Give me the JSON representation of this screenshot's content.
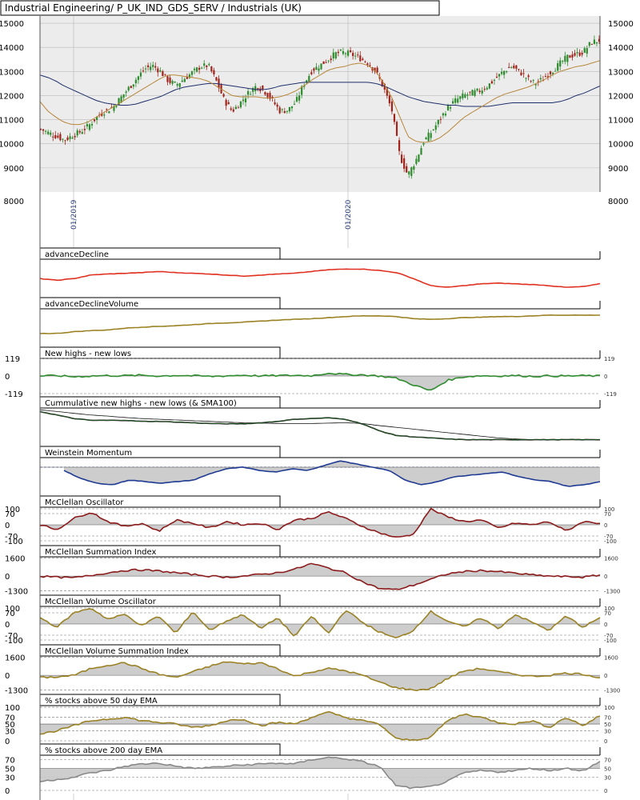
{
  "title": "Industrial Engineering/ P_UK_IND_GDS_SERV / Industrials (UK)",
  "colors": {
    "background": "#ececec",
    "grid": "#bdbdbd",
    "up_candle": "#2e8b2e",
    "down_candle": "#a0241c",
    "ma_short": "#b8863a",
    "ma_long": "#1f2f6b",
    "ad_line": "#e03020",
    "gold": "#9a8224",
    "green": "#2e8b2e",
    "black": "#222222",
    "blue": "#1f3a93",
    "darkred": "#8b1a1a",
    "gray": "#888888",
    "fill": "#c8c8c8"
  },
  "chart_data": [
    {
      "type": "candlestick",
      "title": "Industrial Engineering/ P_UK_IND_GDS_SERV / Industrials (UK)",
      "y_ticks": [
        8000,
        9000,
        10000,
        11000,
        12000,
        13000,
        14000,
        15000
      ],
      "ylim": [
        8000,
        15300
      ],
      "x_labels": [
        "01/2019",
        "01/2020"
      ],
      "x_label_positions": [
        0.06,
        0.55
      ],
      "series": [
        {
          "name": "",
          "style": "candles",
          "values_close": [
            10600,
            10450,
            10300,
            10150,
            10350,
            10500,
            10750,
            11100,
            11350,
            11500,
            11900,
            12300,
            12700,
            13100,
            13250,
            13000,
            12600,
            12450,
            12700,
            12950,
            13200,
            13250,
            12600,
            11800,
            11350,
            11700,
            12100,
            12400,
            12200,
            11800,
            11350,
            11400,
            11750,
            12500,
            13050,
            13250,
            13500,
            13750,
            13800,
            13700,
            13550,
            13350,
            13000,
            12300,
            11400,
            9500,
            8700,
            9300,
            10100,
            10500,
            11000,
            11500,
            11800,
            12000,
            12100,
            12200,
            12400,
            12700,
            13000,
            13200,
            13000,
            12700,
            12500,
            12700,
            13000,
            13300,
            13600,
            13700,
            13800,
            14200,
            14300
          ]
        },
        {
          "name": "",
          "style": "ma_short",
          "values": [
            11750,
            11350,
            11100,
            10900,
            10800,
            10800,
            10900,
            11100,
            11300,
            11500,
            11700,
            11900,
            12100,
            12300,
            12500,
            12700,
            12850,
            12850,
            12800,
            12750,
            12700,
            12600,
            12400,
            12200,
            12000,
            11950,
            11950,
            11950,
            11900,
            11900,
            11950,
            12050,
            12200,
            12400,
            12650,
            12850,
            13050,
            13150,
            13200,
            13300,
            13350,
            13250,
            13000,
            12500,
            11900,
            11100,
            10300,
            10100,
            10050,
            10100,
            10250,
            10500,
            10800,
            11100,
            11300,
            11500,
            11700,
            11900,
            12050,
            12150,
            12250,
            12350,
            12500,
            12650,
            12850,
            13000,
            13100,
            13200,
            13250,
            13350,
            13450
          ]
        },
        {
          "name": "",
          "style": "ma_long",
          "values": [
            12850,
            12750,
            12600,
            12400,
            12250,
            12100,
            11950,
            11800,
            11700,
            11650,
            11600,
            11600,
            11650,
            11750,
            11850,
            11950,
            12100,
            12250,
            12350,
            12400,
            12450,
            12500,
            12500,
            12450,
            12400,
            12350,
            12300,
            12250,
            12250,
            12300,
            12400,
            12450,
            12500,
            12550,
            12550,
            12550,
            12550,
            12550,
            12550,
            12550,
            12550,
            12550,
            12500,
            12400,
            12250,
            12100,
            11950,
            11850,
            11750,
            11700,
            11650,
            11600,
            11600,
            11550,
            11550,
            11550,
            11550,
            11600,
            11650,
            11700,
            11700,
            11700,
            11700,
            11700,
            11700,
            11750,
            11850,
            12000,
            12100,
            12250,
            12400
          ]
        }
      ]
    },
    {
      "type": "line",
      "title": "advanceDecline",
      "series": [
        {
          "name": "",
          "values": [
            0.45,
            0.4,
            0.45,
            0.55,
            0.58,
            0.6,
            0.62,
            0.65,
            0.62,
            0.6,
            0.58,
            0.55,
            0.52,
            0.55,
            0.58,
            0.6,
            0.65,
            0.7,
            0.72,
            0.72,
            0.68,
            0.62,
            0.45,
            0.25,
            0.2,
            0.25,
            0.3,
            0.32,
            0.3,
            0.28,
            0.25,
            0.2,
            0.22,
            0.3
          ]
        }
      ]
    },
    {
      "type": "line",
      "title": "advanceDeclineVolume",
      "series": [
        {
          "name": "",
          "values": [
            0.3,
            0.3,
            0.35,
            0.38,
            0.4,
            0.45,
            0.48,
            0.5,
            0.52,
            0.55,
            0.58,
            0.6,
            0.62,
            0.65,
            0.68,
            0.7,
            0.72,
            0.75,
            0.78,
            0.8,
            0.8,
            0.78,
            0.72,
            0.7,
            0.72,
            0.75,
            0.76,
            0.78,
            0.78,
            0.8,
            0.82,
            0.82,
            0.82,
            0.82
          ]
        }
      ]
    },
    {
      "type": "area",
      "title": "New highs - new lows",
      "y_ticks": [
        119,
        0,
        -119
      ],
      "series": [
        {
          "name": "",
          "values": [
            0,
            2,
            -5,
            0,
            3,
            2,
            5,
            0,
            4,
            2,
            -3,
            1,
            6,
            0,
            3,
            4,
            2,
            20,
            10,
            8,
            0,
            -15,
            -60,
            -100,
            -30,
            -5,
            2,
            0,
            3,
            -2,
            1,
            0,
            2,
            0
          ]
        }
      ]
    },
    {
      "type": "line",
      "title": "Cummulative new highs - new lows (& SMA100)",
      "series": [
        {
          "name": "",
          "values": [
            0.9,
            0.8,
            0.7,
            0.65,
            0.65,
            0.65,
            0.62,
            0.62,
            0.6,
            0.58,
            0.56,
            0.55,
            0.55,
            0.58,
            0.62,
            0.68,
            0.7,
            0.72,
            0.68,
            0.55,
            0.35,
            0.22,
            0.18,
            0.15,
            0.12,
            0.1,
            0.1,
            0.1,
            0.1,
            0.1,
            0.1,
            0.1,
            0.1,
            0.1
          ]
        },
        {
          "name": "",
          "values": [
            0.95,
            0.9,
            0.85,
            0.8,
            0.77,
            0.73,
            0.7,
            0.68,
            0.66,
            0.64,
            0.62,
            0.6,
            0.58,
            0.57,
            0.56,
            0.56,
            0.56,
            0.57,
            0.58,
            0.56,
            0.5,
            0.45,
            0.4,
            0.35,
            0.3,
            0.25,
            0.2,
            0.15,
            0.12,
            0.1,
            0.1,
            0.1,
            0.1,
            0.1
          ]
        }
      ]
    },
    {
      "type": "area",
      "title": "Weinstein Momentum",
      "series": [
        {
          "name": "",
          "values": [
            0.7,
            0.45,
            0.3,
            0.25,
            0.4,
            0.35,
            0.3,
            0.35,
            0.4,
            0.6,
            0.75,
            0.8,
            0.7,
            0.65,
            0.75,
            0.7,
            0.85,
            1.0,
            0.9,
            0.8,
            0.7,
            0.4,
            0.25,
            0.35,
            0.5,
            0.55,
            0.6,
            0.65,
            0.5,
            0.4,
            0.35,
            0.2,
            0.25,
            0.35
          ]
        }
      ]
    },
    {
      "type": "area",
      "title": "McClellan Oscillator",
      "y_ticks": [
        100,
        70,
        0,
        -70,
        -100
      ],
      "series": [
        {
          "name": "",
          "values": [
            0,
            -30,
            40,
            80,
            20,
            -10,
            10,
            -40,
            30,
            10,
            -20,
            20,
            0,
            10,
            -30,
            30,
            40,
            80,
            40,
            -10,
            -50,
            -80,
            -60,
            100,
            50,
            20,
            30,
            -20,
            10,
            0,
            20,
            -40,
            20,
            10
          ]
        }
      ]
    },
    {
      "type": "area",
      "title": "McClellan Summation Index",
      "y_ticks": [
        1600,
        0,
        -1300
      ],
      "series": [
        {
          "name": "",
          "values": [
            0,
            -100,
            -150,
            50,
            300,
            500,
            550,
            450,
            300,
            150,
            0,
            -100,
            0,
            150,
            300,
            600,
            1100,
            700,
            300,
            -500,
            -1100,
            -1200,
            -800,
            -300,
            200,
            400,
            500,
            400,
            250,
            100,
            0,
            -50,
            -100,
            100
          ]
        }
      ]
    },
    {
      "type": "area",
      "title": "McClellan Volume Oscillator",
      "y_ticks": [
        100,
        70,
        0,
        -70,
        -100
      ],
      "series": [
        {
          "name": "",
          "values": [
            40,
            -20,
            70,
            100,
            30,
            60,
            -10,
            50,
            -60,
            80,
            -40,
            20,
            60,
            -30,
            40,
            -80,
            50,
            -60,
            90,
            10,
            -50,
            -90,
            -40,
            80,
            20,
            -20,
            40,
            -30,
            60,
            10,
            -40,
            50,
            -20,
            40
          ]
        }
      ]
    },
    {
      "type": "area",
      "title": "McClellan Volume Summation Index",
      "y_ticks": [
        1600,
        0,
        -1300
      ],
      "series": [
        {
          "name": "",
          "values": [
            -200,
            -150,
            0,
            600,
            900,
            1100,
            600,
            100,
            -200,
            300,
            800,
            1200,
            1000,
            1100,
            600,
            -100,
            300,
            600,
            400,
            0,
            -600,
            -1100,
            -1300,
            -1200,
            -300,
            400,
            600,
            300,
            100,
            -100,
            0,
            200,
            100,
            -200
          ]
        }
      ]
    },
    {
      "type": "area",
      "title": "% stocks above 50 day EMA",
      "y_ticks": [
        100,
        70,
        50,
        30,
        0
      ],
      "series": [
        {
          "name": "",
          "values": [
            20,
            30,
            45,
            60,
            65,
            70,
            60,
            55,
            50,
            40,
            45,
            60,
            65,
            45,
            55,
            50,
            70,
            85,
            70,
            60,
            50,
            5,
            2,
            10,
            60,
            80,
            70,
            55,
            50,
            60,
            40,
            70,
            45,
            75
          ]
        }
      ]
    },
    {
      "type": "area",
      "title": "% stocks above 200 day EMA",
      "y_ticks": [
        70,
        50,
        30,
        0
      ],
      "series": [
        {
          "name": "",
          "values": [
            20,
            25,
            30,
            40,
            45,
            55,
            60,
            62,
            55,
            50,
            52,
            55,
            58,
            60,
            62,
            60,
            70,
            75,
            72,
            65,
            55,
            10,
            5,
            8,
            20,
            40,
            45,
            42,
            45,
            50,
            45,
            50,
            45,
            65
          ]
        }
      ]
    }
  ]
}
